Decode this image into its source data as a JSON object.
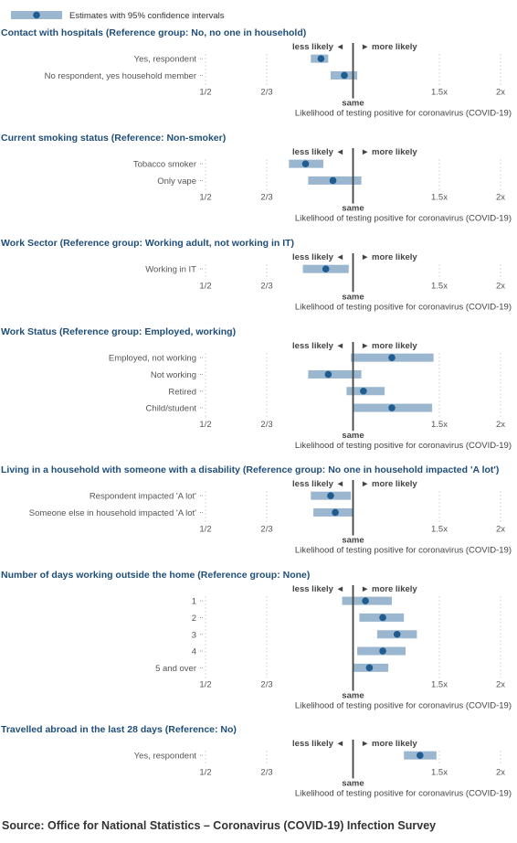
{
  "legend": {
    "label": "Estimates with 95% confidence intervals"
  },
  "axis": {
    "less_label": "less likely",
    "more_label": "more likely",
    "same_label": "same",
    "xlabel": "Likelihood of testing positive for coronavirus (COVID-19)",
    "ticks": [
      {
        "value": 0.5,
        "label": "1/2"
      },
      {
        "value": 0.6667,
        "label": "2/3"
      },
      {
        "value": 1.5,
        "label": "1.5x"
      },
      {
        "value": 2.0,
        "label": "2x"
      }
    ],
    "scale": "log",
    "reference": 1.0
  },
  "colors": {
    "ci": "#9bb7d0",
    "point": "#1f5c8f",
    "title": "#1f4e79",
    "reference_line": "#444444",
    "grid": "#d8d8d8"
  },
  "chart_data": {
    "type": "forest",
    "panels": [
      {
        "title": "Contact with hospitals (Reference group: No, no one in household)",
        "rows": [
          {
            "label": "Yes, respondent",
            "estimate": 0.86,
            "lower": 0.82,
            "upper": 0.89
          },
          {
            "label": "No respondent, yes household member",
            "estimate": 0.96,
            "lower": 0.9,
            "upper": 1.02
          }
        ]
      },
      {
        "title": "Current smoking status (Reference: Non-smoker)",
        "rows": [
          {
            "label": "Tobacco smoker",
            "estimate": 0.8,
            "lower": 0.74,
            "upper": 0.87
          },
          {
            "label": "Only vape",
            "estimate": 0.91,
            "lower": 0.81,
            "upper": 1.04
          }
        ]
      },
      {
        "title": "Work Sector (Reference group: Working adult, not working in IT)",
        "rows": [
          {
            "label": "Working in IT",
            "estimate": 0.88,
            "lower": 0.79,
            "upper": 0.98
          }
        ]
      },
      {
        "title": "Work Status (Reference group: Employed, working)",
        "rows": [
          {
            "label": "Employed, not working",
            "estimate": 1.2,
            "lower": 0.99,
            "upper": 1.46
          },
          {
            "label": "Not working",
            "estimate": 0.89,
            "lower": 0.81,
            "upper": 1.04
          },
          {
            "label": "Retired",
            "estimate": 1.05,
            "lower": 0.97,
            "upper": 1.16
          },
          {
            "label": "Child/student",
            "estimate": 1.2,
            "lower": 1.0,
            "upper": 1.45
          }
        ]
      },
      {
        "title": "Living in a household with someone with a disability (Reference group: No one in household impacted 'A lot')",
        "rows": [
          {
            "label": "Respondent impacted 'A lot'",
            "estimate": 0.9,
            "lower": 0.82,
            "upper": 0.99
          },
          {
            "label": "Someone else in household impacted 'A lot'",
            "estimate": 0.92,
            "lower": 0.83,
            "upper": 1.0
          }
        ]
      },
      {
        "title": "Number of days working outside the home (Reference group: None)",
        "rows": [
          {
            "label": "1",
            "estimate": 1.06,
            "lower": 0.95,
            "upper": 1.2
          },
          {
            "label": "2",
            "estimate": 1.15,
            "lower": 1.03,
            "upper": 1.27
          },
          {
            "label": "3",
            "estimate": 1.23,
            "lower": 1.12,
            "upper": 1.35
          },
          {
            "label": "4",
            "estimate": 1.15,
            "lower": 1.02,
            "upper": 1.28
          },
          {
            "label": "5 and over",
            "estimate": 1.08,
            "lower": 1.0,
            "upper": 1.18
          }
        ]
      },
      {
        "title": "Travelled abroad in the last 28 days (Reference: No)",
        "rows": [
          {
            "label": "Yes, respondent",
            "estimate": 1.37,
            "lower": 1.27,
            "upper": 1.48
          }
        ]
      }
    ]
  },
  "source": "Source: Office for National Statistics – Coronavirus (COVID-19) Infection Survey"
}
